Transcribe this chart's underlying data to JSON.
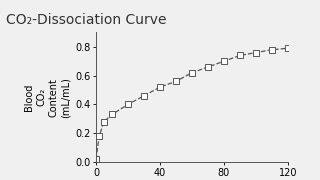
{
  "title": "CO₂-Dissociation Curve",
  "ylabel": "Blood\nCO₂\nContent\n(mL/mL)",
  "xlabel": "",
  "xlim": [
    0,
    120
  ],
  "ylim": [
    0,
    0.9
  ],
  "yticks": [
    0,
    0.2,
    0.4,
    0.6,
    0.8
  ],
  "xticks": [
    0,
    40,
    80,
    120
  ],
  "x_data": [
    0,
    2,
    5,
    10,
    20,
    30,
    40,
    50,
    60,
    70,
    80,
    90,
    100,
    110,
    120
  ],
  "y_data": [
    0.02,
    0.18,
    0.28,
    0.33,
    0.4,
    0.46,
    0.52,
    0.56,
    0.62,
    0.66,
    0.7,
    0.74,
    0.76,
    0.78,
    0.79
  ],
  "line_color": "#555555",
  "marker": "s",
  "marker_face": "white",
  "marker_edge": "#555555",
  "marker_size": 4,
  "line_style": "--",
  "bg_color": "#f0f0f0",
  "title_fontsize": 10,
  "label_fontsize": 7,
  "tick_fontsize": 7,
  "sidebar_color1": "#e07b2a",
  "sidebar_color2": "#2e6080"
}
